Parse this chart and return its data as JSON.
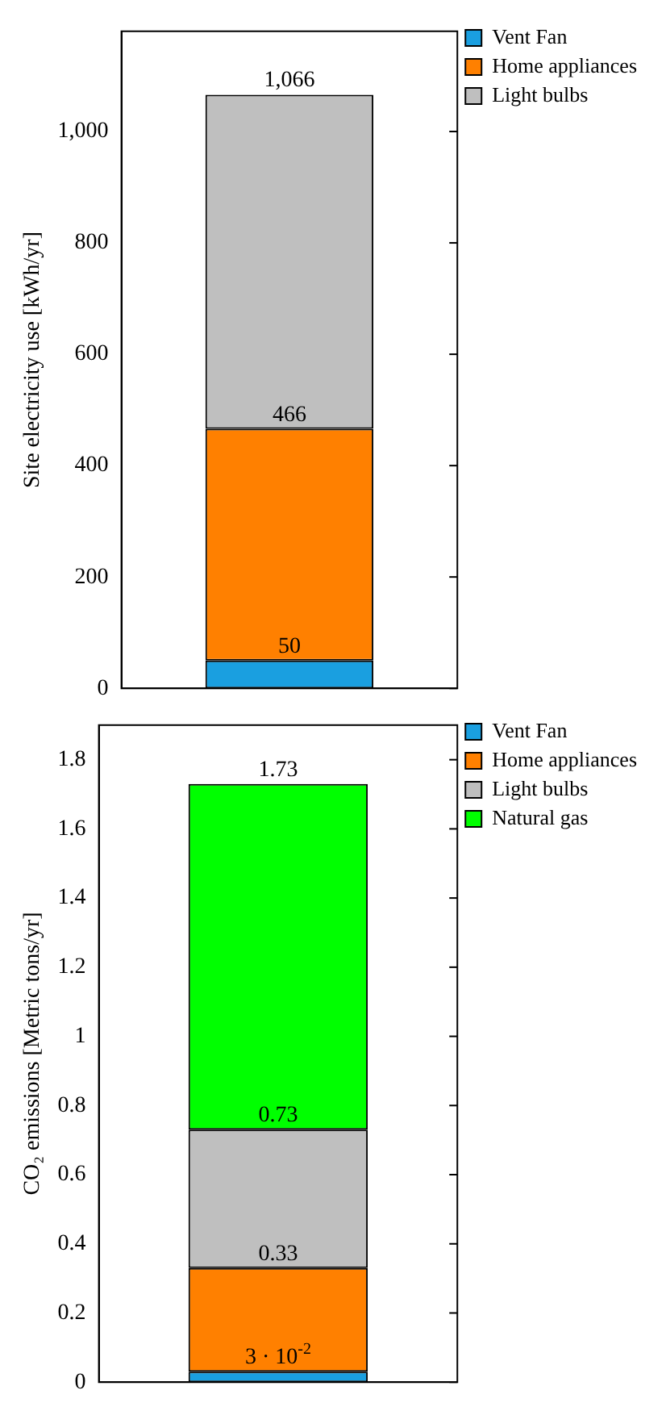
{
  "chart_data": [
    {
      "type": "bar",
      "categories": [
        null
      ],
      "stacked": true,
      "ylabel": "Site electricity use [kWh/yr]",
      "ylim": [
        0,
        1180
      ],
      "yticks": [
        0,
        200,
        400,
        600,
        800,
        {
          "value": 1000,
          "label": "1,000"
        }
      ],
      "grid": false,
      "legend": "top right",
      "tick_labels": "y",
      "series": [
        {
          "name": "Vent Fan",
          "color": "#1a9fe0",
          "values": [
            50
          ]
        },
        {
          "name": "Home appliances",
          "color": "#ff8000",
          "values": [
            416
          ]
        },
        {
          "name": "Light bulbs",
          "color": "#bfbfbf",
          "values": [
            600
          ]
        }
      ],
      "annotations": [
        {
          "text": "50",
          "y": 50
        },
        {
          "text": "466",
          "y": 466
        },
        {
          "text": "1,066",
          "y": 1066
        }
      ]
    },
    {
      "type": "bar",
      "categories": [
        null
      ],
      "stacked": true,
      "ylabel": "CO₂ emissions [Metric tons/yr]",
      "ylim": [
        0,
        1.9
      ],
      "yticks": [
        0,
        0.2,
        0.4,
        0.6,
        0.8,
        1,
        1.2,
        1.4,
        1.6,
        1.8
      ],
      "grid": false,
      "legend": "top right",
      "tick_labels": "y",
      "series": [
        {
          "name": "Vent Fan",
          "color": "#1a9fe0",
          "values": [
            0.03
          ]
        },
        {
          "name": "Home appliances",
          "color": "#ff8000",
          "values": [
            0.3
          ]
        },
        {
          "name": "Light bulbs",
          "color": "#bfbfbf",
          "values": [
            0.4
          ]
        },
        {
          "name": "Natural gas",
          "color": "#00ff00",
          "values": [
            1
          ]
        }
      ],
      "annotations": [
        {
          "text": "3 · 10$^{-2}$",
          "y": 0.03
        },
        {
          "text": "0.33",
          "y": 0.33
        },
        {
          "text": "0.73",
          "y": 0.73
        },
        {
          "text": "1.73",
          "y": 1.73
        }
      ]
    }
  ]
}
